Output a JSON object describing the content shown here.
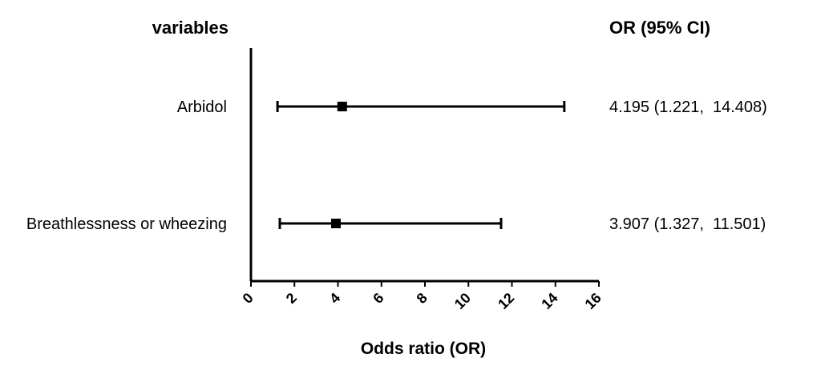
{
  "chart_data": {
    "type": "scatter",
    "subtype": "forest-plot",
    "title": "",
    "left_header": "variables",
    "right_header": "OR (95% CI)",
    "xlabel": "Odds ratio (OR)",
    "xlim": [
      0,
      16
    ],
    "xticks": [
      0,
      2,
      4,
      6,
      8,
      10,
      12,
      14,
      16
    ],
    "xtick_labels": [
      "0",
      "2",
      "4",
      "6",
      "8",
      "10",
      "12",
      "14",
      "16"
    ],
    "grid": false,
    "rows": [
      {
        "label": "Arbidol",
        "or": 4.195,
        "lower": 1.221,
        "upper": 14.408,
        "text": "4.195 (1.221,  14.408)"
      },
      {
        "label": "Breathlessness or wheezing",
        "or": 3.907,
        "lower": 1.327,
        "upper": 11.501,
        "text": "3.907 (1.327,  11.501)"
      }
    ]
  }
}
